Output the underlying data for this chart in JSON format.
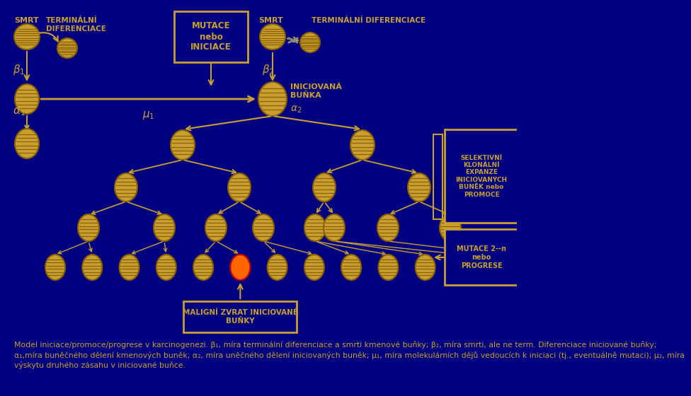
{
  "bg_color": "#000080",
  "cell_color": "#C8A030",
  "cell_edge": "#8B6000",
  "arrow_color": "#C8A030",
  "text_color": "#C8A030",
  "white_text": "#C8A030",
  "box_color": "#C8A030",
  "box_bg": "#000080",
  "red_cell_face": "#FF6600",
  "red_cell_edge": "#CC0000",
  "paragraph": "Model iniciace/promoce/progrese v karcinogenezi. β₁, míra terminální diferenciace a smrti kmenové buňky; β₂, míra smrti, ale ne term. Diferenciace iniciované buňky;\nα₁,míra buněčného dělení kmenových buněk; α₂, míra uněčného dělení iniciovaných buněk; μ₁, míra molekulárních dějů vedoucích k iniciaci (tj., eventuálně mutaci); μ₂, míra\nvýskytu druhého zásahu v iniciované buňce."
}
